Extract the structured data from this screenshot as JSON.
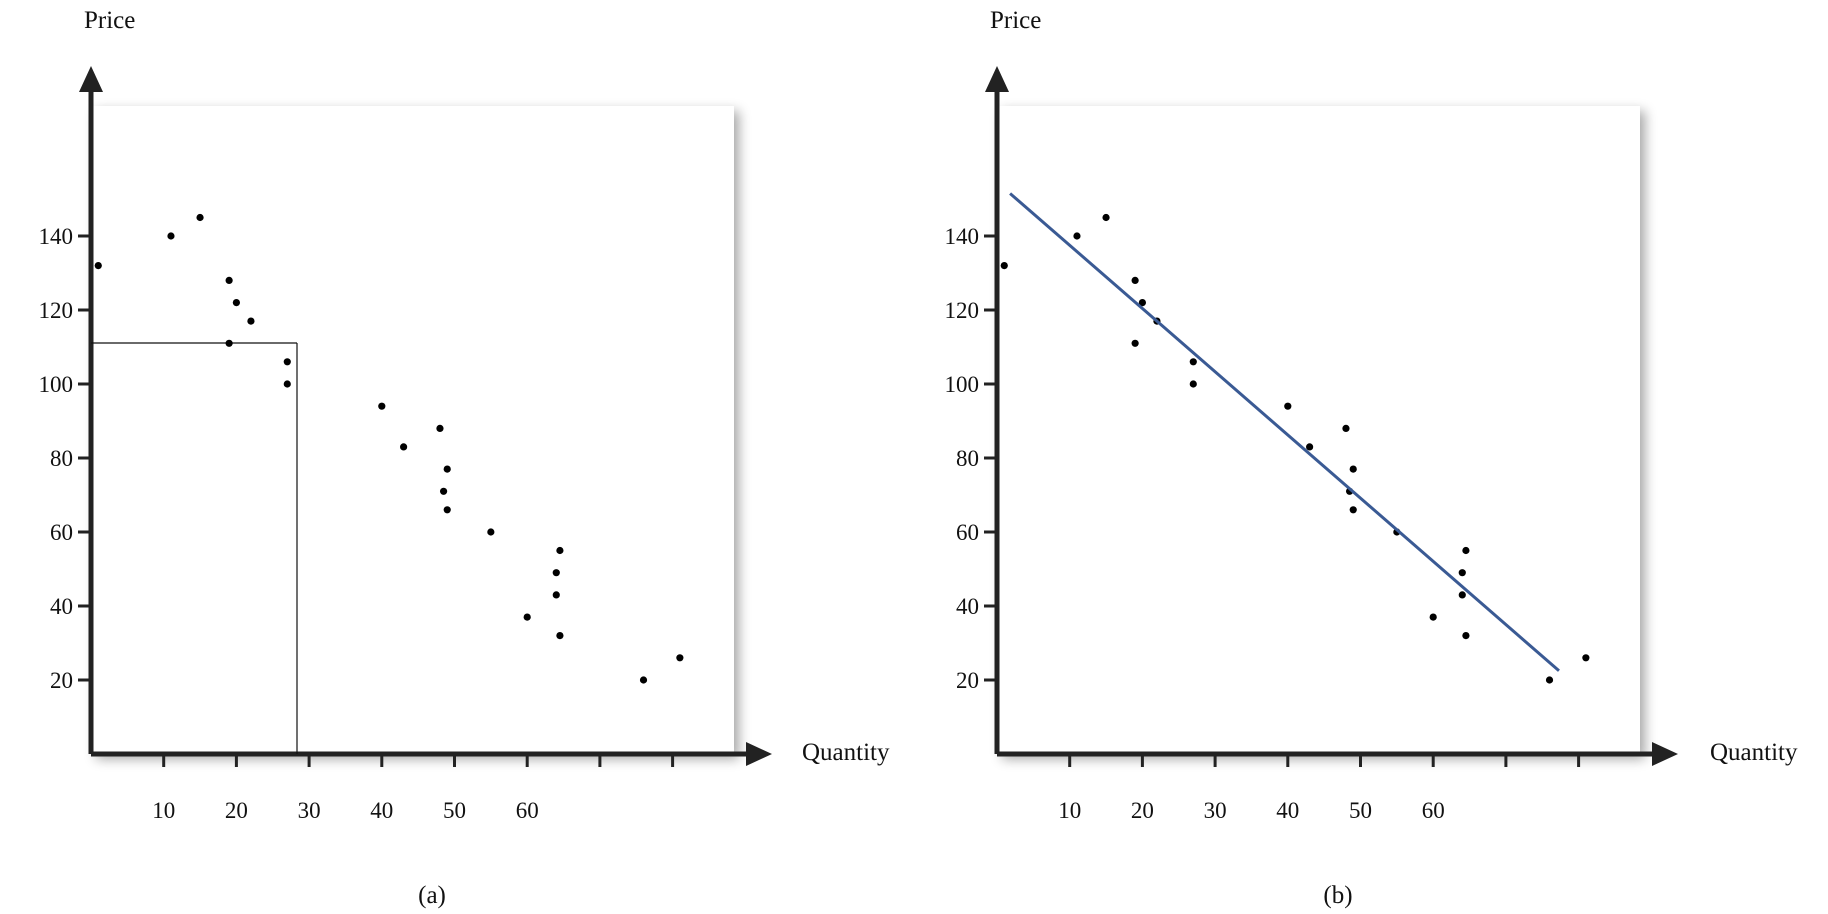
{
  "chart_data": [
    {
      "type": "scatter",
      "panel_label": "(a)",
      "xlabel": "Quantity",
      "ylabel": "Price",
      "xlim": [
        0,
        92
      ],
      "ylim": [
        0,
        155
      ],
      "x_ticks": [
        10,
        20,
        30,
        40,
        50,
        60,
        70,
        80
      ],
      "x_tick_labels": [
        "10",
        "20",
        "30",
        "40",
        "50",
        "60",
        "",
        ""
      ],
      "y_ticks": [
        20,
        40,
        60,
        80,
        100,
        120,
        140
      ],
      "y_tick_labels": [
        "20",
        "40",
        "60",
        "80",
        "100",
        "120",
        "140"
      ],
      "grid": false,
      "legend": "none",
      "point_color": "#000000",
      "series": [
        {
          "x": [
            1,
            11,
            15,
            19,
            20,
            22,
            19,
            27,
            27,
            40,
            43,
            48,
            49,
            48.5,
            49,
            55,
            60,
            64.5,
            64,
            64,
            64.5,
            76,
            81
          ],
          "y": [
            132,
            140,
            145,
            128,
            122,
            117,
            111,
            106,
            100,
            94,
            83,
            88,
            77,
            71,
            66,
            60,
            37,
            55,
            49,
            43,
            32,
            20,
            26
          ]
        }
      ],
      "annotations": [
        {
          "type": "guide-lines",
          "x": 27,
          "y": 100,
          "color": "#000000"
        }
      ]
    },
    {
      "type": "scatter",
      "panel_label": "(b)",
      "xlabel": "Quantity",
      "ylabel": "Price",
      "xlim": [
        0,
        92
      ],
      "ylim": [
        0,
        155
      ],
      "x_ticks": [
        10,
        20,
        30,
        40,
        50,
        60,
        70,
        80
      ],
      "x_tick_labels": [
        "10",
        "20",
        "30",
        "40",
        "50",
        "60",
        "",
        ""
      ],
      "y_ticks": [
        20,
        40,
        60,
        80,
        100,
        120,
        140
      ],
      "y_tick_labels": [
        "20",
        "40",
        "60",
        "80",
        "100",
        "120",
        "140"
      ],
      "grid": false,
      "legend": "none",
      "point_color": "#000000",
      "series": [
        {
          "x": [
            1,
            11,
            15,
            19,
            20,
            22,
            19,
            27,
            27,
            40,
            43,
            48,
            49,
            48.5,
            49,
            55,
            60,
            64.5,
            64,
            64,
            64.5,
            76,
            81
          ],
          "y": [
            132,
            140,
            145,
            128,
            122,
            117,
            111,
            106,
            100,
            94,
            83,
            88,
            77,
            71,
            66,
            60,
            37,
            55,
            49,
            43,
            32,
            20,
            26
          ]
        }
      ],
      "trend_line": {
        "x": [
          1.8,
          77.3
        ],
        "y": [
          151.5,
          22.5
        ],
        "color": "#3a5a94"
      }
    }
  ]
}
